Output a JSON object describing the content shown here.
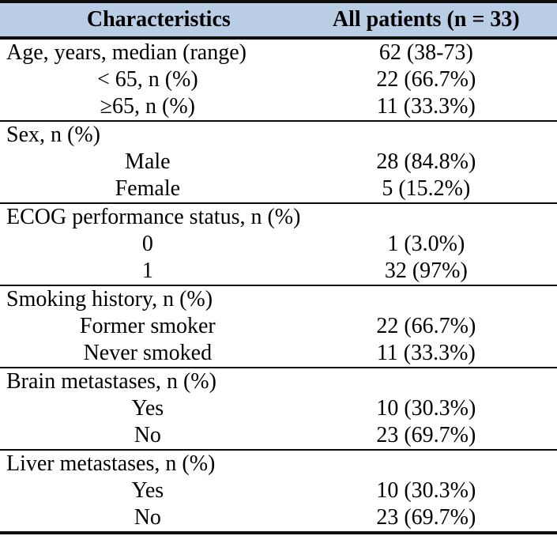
{
  "table": {
    "header": {
      "characteristics": "Characteristics",
      "all_patients": "All patients (n = 33)"
    },
    "sections": [
      {
        "rows": [
          {
            "label": "Age, years, median (range)",
            "value": "62 (38-73)",
            "indent": false
          },
          {
            "label": "< 65, n (%)",
            "value": "22 (66.7%)",
            "indent": true
          },
          {
            "label": "≥65, n (%)",
            "value": "11 (33.3%)",
            "indent": true
          }
        ]
      },
      {
        "rows": [
          {
            "label": "Sex, n (%)",
            "value": "",
            "indent": false
          },
          {
            "label": "Male",
            "value": "28 (84.8%)",
            "indent": true
          },
          {
            "label": "Female",
            "value": "5 (15.2%)",
            "indent": true
          }
        ]
      },
      {
        "rows": [
          {
            "label": "ECOG performance status, n (%)",
            "value": "",
            "indent": false
          },
          {
            "label": "0",
            "value": "1 (3.0%)",
            "indent": true
          },
          {
            "label": "1",
            "value": "32 (97%)",
            "indent": true
          }
        ]
      },
      {
        "rows": [
          {
            "label": "Smoking history, n (%)",
            "value": "",
            "indent": false
          },
          {
            "label": "Former smoker",
            "value": "22 (66.7%)",
            "indent": true
          },
          {
            "label": "Never smoked",
            "value": "11 (33.3%)",
            "indent": true
          }
        ]
      },
      {
        "rows": [
          {
            "label": "Brain metastases, n (%)",
            "value": "",
            "indent": false
          },
          {
            "label": "Yes",
            "value": "10 (30.3%)",
            "indent": true
          },
          {
            "label": "No",
            "value": "23 (69.7%)",
            "indent": true
          }
        ]
      },
      {
        "rows": [
          {
            "label": "Liver metastases, n (%)",
            "value": "",
            "indent": false
          },
          {
            "label": "Yes",
            "value": "10 (30.3%)",
            "indent": true
          },
          {
            "label": "No",
            "value": "23 (69.7%)",
            "indent": true
          }
        ]
      }
    ],
    "colors": {
      "header_bg": "#b9cde5",
      "rule": "#0d0d0d",
      "text": "#000000"
    }
  }
}
